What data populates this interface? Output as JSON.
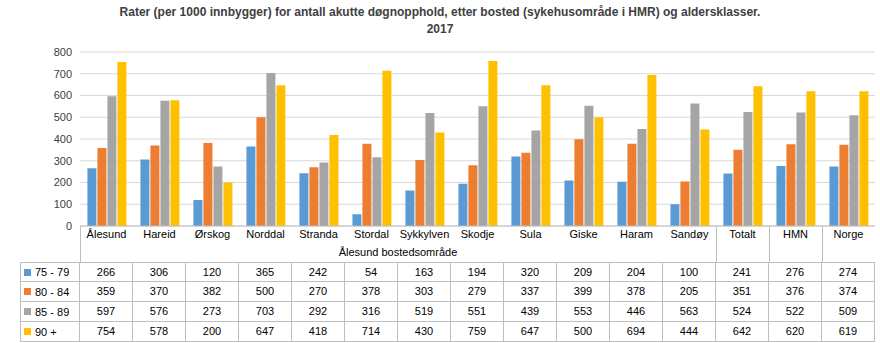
{
  "chart_data": {
    "type": "bar",
    "title": "Rater (per 1000 innbygger) for antall akutte døgnopphold, etter bosted (sykehusområde i HMR) og aldersklasser.\n2017",
    "categories": [
      "Ålesund",
      "Hareid",
      "Ørskog",
      "Norddal",
      "Stranda",
      "Stordal",
      "Sykkylven",
      "Skodje",
      "Sula",
      "Giske",
      "Haram",
      "Sandøy",
      "Totalt",
      "HMN",
      "Norge"
    ],
    "annotations": [
      "Ålesund bostedsområde"
    ],
    "series": [
      {
        "name": "75 - 79",
        "color": "#5b9bd5",
        "values": [
          266,
          306,
          120,
          365,
          242,
          54,
          163,
          194,
          320,
          209,
          204,
          100,
          241,
          276,
          274
        ]
      },
      {
        "name": "80 - 84",
        "color": "#ed7d31",
        "values": [
          359,
          370,
          382,
          500,
          270,
          378,
          303,
          279,
          337,
          399,
          378,
          205,
          351,
          376,
          374
        ]
      },
      {
        "name": "85 - 89",
        "color": "#a5a5a5",
        "values": [
          597,
          576,
          273,
          703,
          292,
          316,
          519,
          551,
          439,
          553,
          446,
          563,
          524,
          522,
          509
        ]
      },
      {
        "name": "90 +",
        "color": "#ffc000",
        "values": [
          754,
          578,
          200,
          647,
          418,
          714,
          430,
          759,
          647,
          500,
          694,
          444,
          642,
          620,
          619
        ]
      }
    ],
    "ylim": [
      0,
      800
    ],
    "yticks": [
      0,
      100,
      200,
      300,
      400,
      500,
      600,
      700,
      800
    ],
    "grid": true
  }
}
